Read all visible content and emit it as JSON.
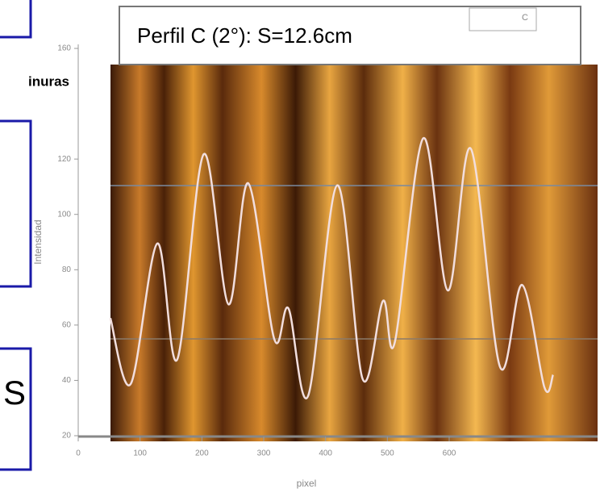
{
  "left_panel": {
    "label": "inuras",
    "letter": "S"
  },
  "chart_data": {
    "type": "line",
    "title": "Perfil C (2°):  S=12.6cm",
    "tag": "C",
    "x_label": "pixel",
    "y_label": "Intensidad",
    "xlim": [
      0,
      840
    ],
    "xticks": [
      0,
      100,
      200,
      300,
      400,
      500,
      600
    ],
    "ylim": [
      20,
      160
    ],
    "yticks": [
      20,
      40,
      60,
      80,
      100,
      120,
      160
    ],
    "series": [
      {
        "color": "#f2dede",
        "x": [
          52,
          85,
          128,
          160,
          203,
          243,
          275,
          317,
          340,
          372,
          419,
          460,
          493,
          512,
          558,
          598,
          635,
          682,
          718,
          754,
          768
        ],
        "values": [
          62.5,
          38.75,
          89.5,
          47.5,
          121.75,
          67.5,
          111.25,
          55,
          66,
          34.5,
          110.5,
          40.5,
          68.75,
          53.75,
          127.5,
          72.5,
          123.75,
          45,
          74.5,
          37.5,
          42
        ]
      }
    ]
  }
}
